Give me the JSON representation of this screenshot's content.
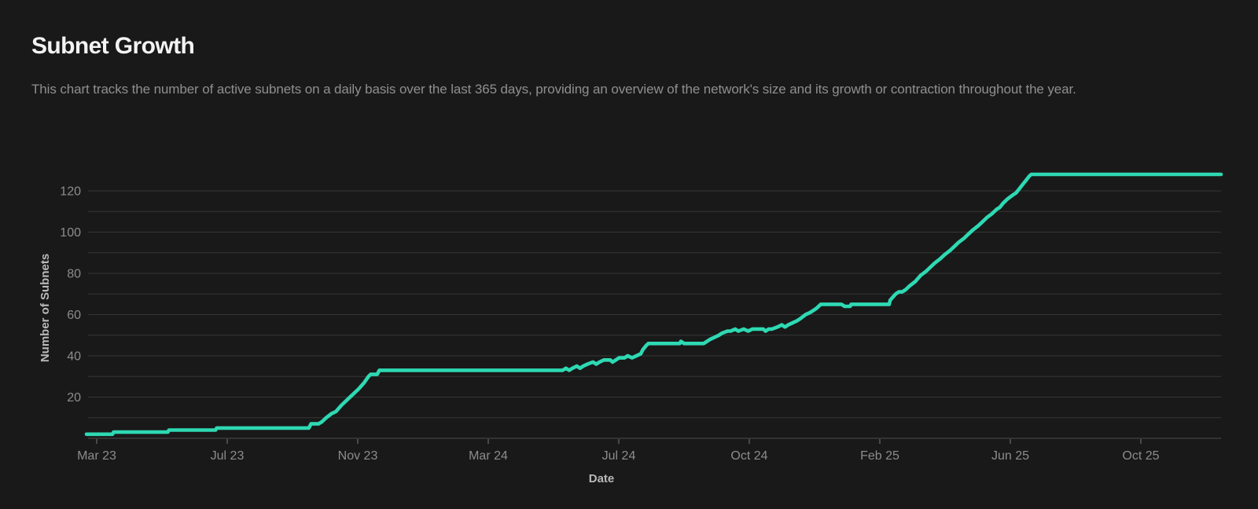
{
  "page": {
    "title": "Subnet Growth",
    "subtitle": "This chart tracks the number of active subnets on a daily basis over the last 365 days, providing an overview of the network's size and its growth or contraction throughout the year."
  },
  "colors": {
    "background": "#191919",
    "accent_line": "#2ed9b3",
    "gridline": "#363636",
    "axis_line": "#4d4d4d",
    "tick_text": "#8c8c8c",
    "axis_title_text": "#b9b9b9"
  },
  "chart_data": {
    "type": "line",
    "title": "Subnet Growth",
    "xlabel": "Date",
    "ylabel": "Number of Subnets",
    "legend": "none",
    "grid": "horizontal gridlines every 10 units",
    "ylim": [
      0,
      130
    ],
    "y_tick_labels": [
      20,
      40,
      60,
      80,
      100,
      120
    ],
    "x_tick_labels": [
      "Mar 23",
      "Jul 23",
      "Nov 23",
      "Mar 24",
      "Jul 24",
      "Oct 24",
      "Feb 25",
      "Jun 25",
      "Oct 25"
    ],
    "series": [
      {
        "name": "Active subnets",
        "points": [
          [
            "2023-02-19",
            2
          ],
          [
            "2023-03-15",
            2
          ],
          [
            "2023-03-16",
            3
          ],
          [
            "2023-05-05",
            3
          ],
          [
            "2023-05-06",
            4
          ],
          [
            "2023-06-18",
            4
          ],
          [
            "2023-06-19",
            5
          ],
          [
            "2023-09-12",
            5
          ],
          [
            "2023-09-14",
            7
          ],
          [
            "2023-09-21",
            7
          ],
          [
            "2023-09-24",
            8
          ],
          [
            "2023-09-28",
            10
          ],
          [
            "2023-10-03",
            12
          ],
          [
            "2023-10-07",
            13
          ],
          [
            "2023-10-12",
            16
          ],
          [
            "2023-10-18",
            19
          ],
          [
            "2023-10-24",
            22
          ],
          [
            "2023-10-28",
            24
          ],
          [
            "2023-11-02",
            27
          ],
          [
            "2023-11-06",
            30
          ],
          [
            "2023-11-08",
            31
          ],
          [
            "2023-11-14",
            31
          ],
          [
            "2023-11-16",
            33
          ],
          [
            "2024-04-28",
            33
          ],
          [
            "2024-05-03",
            33
          ],
          [
            "2024-05-06",
            34
          ],
          [
            "2024-05-09",
            33
          ],
          [
            "2024-05-12",
            34
          ],
          [
            "2024-05-16",
            35
          ],
          [
            "2024-05-19",
            34
          ],
          [
            "2024-05-22",
            35
          ],
          [
            "2024-05-26",
            36
          ],
          [
            "2024-05-31",
            37
          ],
          [
            "2024-06-03",
            36
          ],
          [
            "2024-06-06",
            37
          ],
          [
            "2024-06-10",
            38
          ],
          [
            "2024-06-16",
            38
          ],
          [
            "2024-06-18",
            37
          ],
          [
            "2024-06-21",
            38
          ],
          [
            "2024-06-24",
            39
          ],
          [
            "2024-06-29",
            39
          ],
          [
            "2024-07-02",
            40
          ],
          [
            "2024-07-06",
            39
          ],
          [
            "2024-07-10",
            40
          ],
          [
            "2024-07-14",
            41
          ],
          [
            "2024-07-16",
            43
          ],
          [
            "2024-07-19",
            45
          ],
          [
            "2024-07-21",
            46
          ],
          [
            "2024-08-19",
            46
          ],
          [
            "2024-08-20",
            47
          ],
          [
            "2024-08-23",
            46
          ],
          [
            "2024-09-10",
            46
          ],
          [
            "2024-09-16",
            48
          ],
          [
            "2024-09-20",
            49
          ],
          [
            "2024-09-24",
            50
          ],
          [
            "2024-09-27",
            51
          ],
          [
            "2024-10-02",
            52
          ],
          [
            "2024-10-05",
            52
          ],
          [
            "2024-10-09",
            53
          ],
          [
            "2024-10-12",
            52
          ],
          [
            "2024-10-17",
            53
          ],
          [
            "2024-10-21",
            52
          ],
          [
            "2024-10-25",
            53
          ],
          [
            "2024-11-04",
            53
          ],
          [
            "2024-11-06",
            52
          ],
          [
            "2024-11-09",
            53
          ],
          [
            "2024-11-12",
            53
          ],
          [
            "2024-11-17",
            54
          ],
          [
            "2024-11-21",
            55
          ],
          [
            "2024-11-24",
            54
          ],
          [
            "2024-11-27",
            55
          ],
          [
            "2024-12-01",
            56
          ],
          [
            "2024-12-05",
            57
          ],
          [
            "2024-12-08",
            58
          ],
          [
            "2024-12-13",
            60
          ],
          [
            "2024-12-17",
            61
          ],
          [
            "2024-12-20",
            62
          ],
          [
            "2024-12-23",
            63
          ],
          [
            "2024-12-27",
            65
          ],
          [
            "2025-01-15",
            65
          ],
          [
            "2025-01-18",
            64
          ],
          [
            "2025-01-23",
            64
          ],
          [
            "2025-01-24",
            65
          ],
          [
            "2025-02-28",
            65
          ],
          [
            "2025-03-01",
            67
          ],
          [
            "2025-03-06",
            70
          ],
          [
            "2025-03-09",
            71
          ],
          [
            "2025-03-12",
            71
          ],
          [
            "2025-03-15",
            72
          ],
          [
            "2025-03-19",
            74
          ],
          [
            "2025-03-24",
            76
          ],
          [
            "2025-03-29",
            79
          ],
          [
            "2025-04-03",
            81
          ],
          [
            "2025-04-07",
            83
          ],
          [
            "2025-04-11",
            85
          ],
          [
            "2025-04-16",
            87
          ],
          [
            "2025-04-20",
            89
          ],
          [
            "2025-04-25",
            91
          ],
          [
            "2025-04-29",
            93
          ],
          [
            "2025-05-03",
            95
          ],
          [
            "2025-05-08",
            97
          ],
          [
            "2025-05-12",
            99
          ],
          [
            "2025-05-16",
            101
          ],
          [
            "2025-05-21",
            103
          ],
          [
            "2025-05-25",
            105
          ],
          [
            "2025-05-29",
            107
          ],
          [
            "2025-06-03",
            109
          ],
          [
            "2025-06-07",
            111
          ],
          [
            "2025-06-10",
            112
          ],
          [
            "2025-06-13",
            114
          ],
          [
            "2025-06-17",
            116
          ],
          [
            "2025-06-22",
            118
          ],
          [
            "2025-06-25",
            119
          ],
          [
            "2025-06-28",
            121
          ],
          [
            "2025-07-01",
            123
          ],
          [
            "2025-07-04",
            125
          ],
          [
            "2025-07-07",
            127
          ],
          [
            "2025-07-09",
            128
          ],
          [
            "2025-12-31",
            128
          ]
        ]
      }
    ]
  }
}
